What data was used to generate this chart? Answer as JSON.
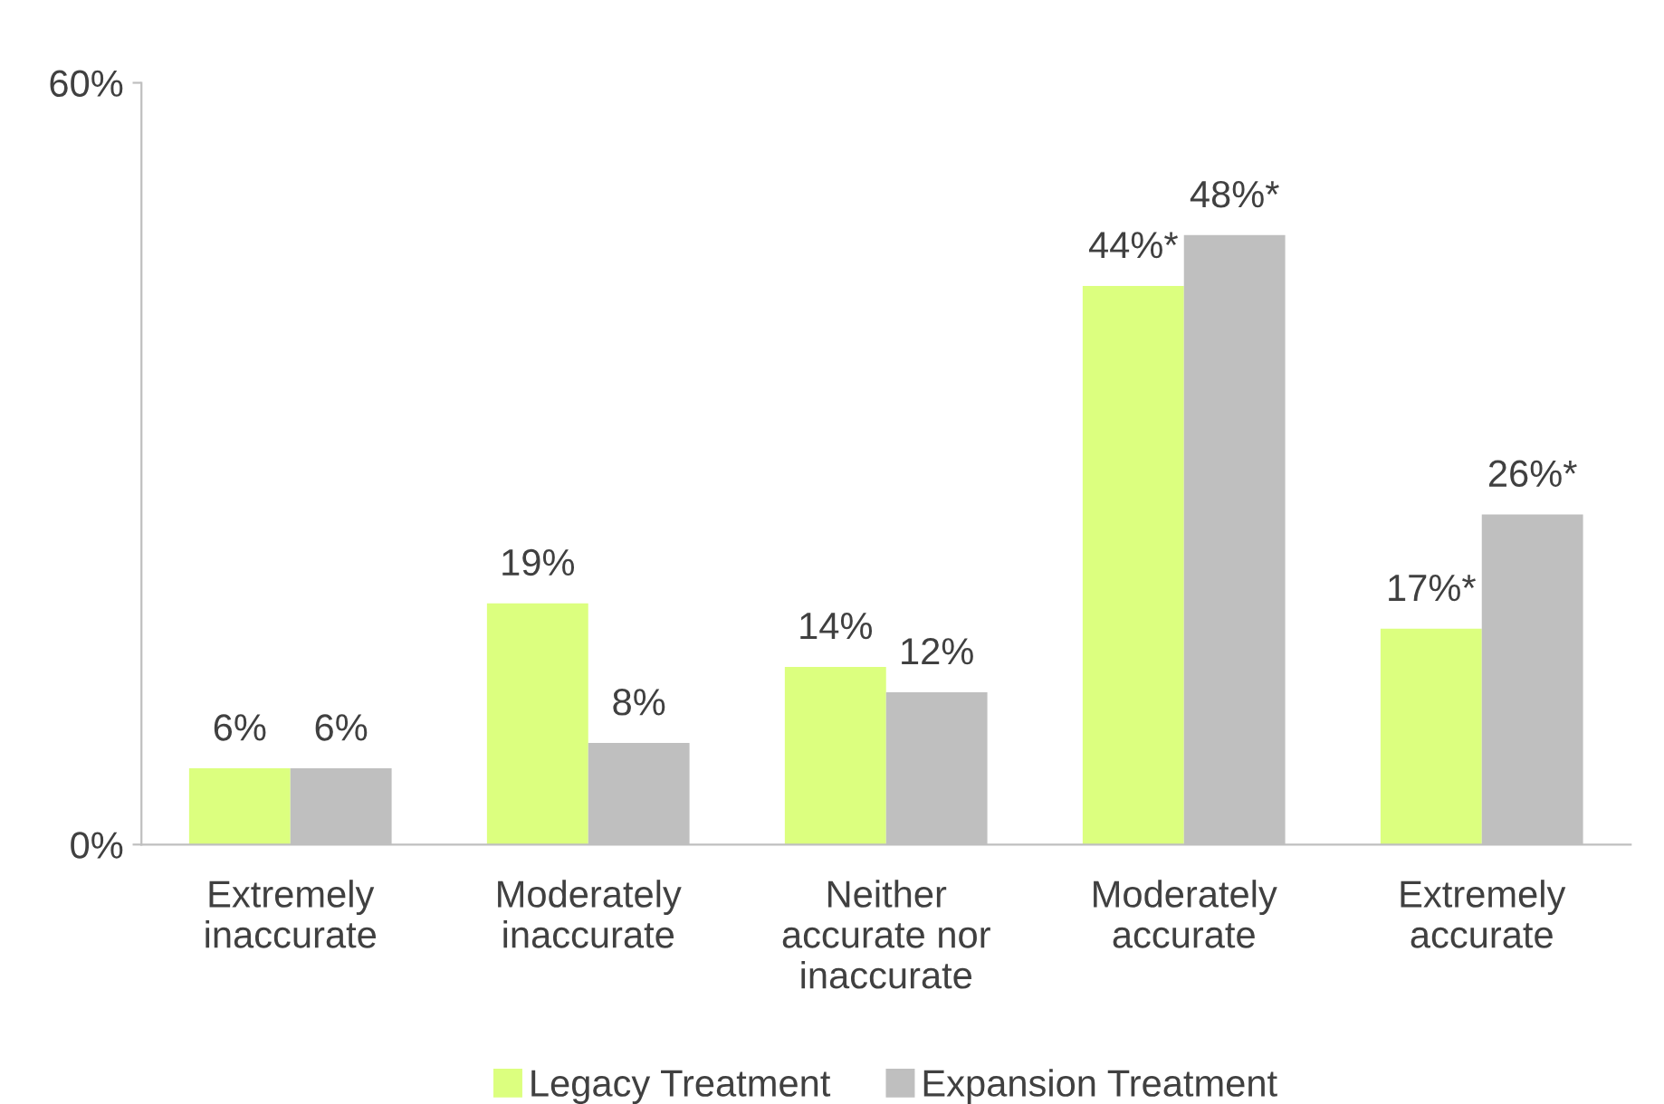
{
  "chart_data": {
    "type": "bar",
    "categories": [
      "Extremely\ninaccurate",
      "Moderately\ninaccurate",
      "Neither\naccurate nor\ninaccurate",
      "Moderately\naccurate",
      "Extremely\naccurate"
    ],
    "series": [
      {
        "name": "Legacy Treatment",
        "color": "#dcff7f",
        "values": [
          6,
          19,
          14,
          44,
          17
        ],
        "value_labels": [
          "6%",
          "19%",
          "14%",
          "44%*",
          "17%*"
        ]
      },
      {
        "name": "Expansion Treatment",
        "color": "#bfbfbf",
        "values": [
          6,
          8,
          12,
          48,
          26
        ],
        "value_labels": [
          "6%",
          "8%",
          "12%",
          "48%*",
          "26%*"
        ]
      }
    ],
    "ylim": [
      0,
      60
    ],
    "yticks": [
      {
        "value": 0,
        "label": "0%"
      },
      {
        "value": 60,
        "label": "60%"
      }
    ],
    "grid": false,
    "legend": "bottom"
  }
}
